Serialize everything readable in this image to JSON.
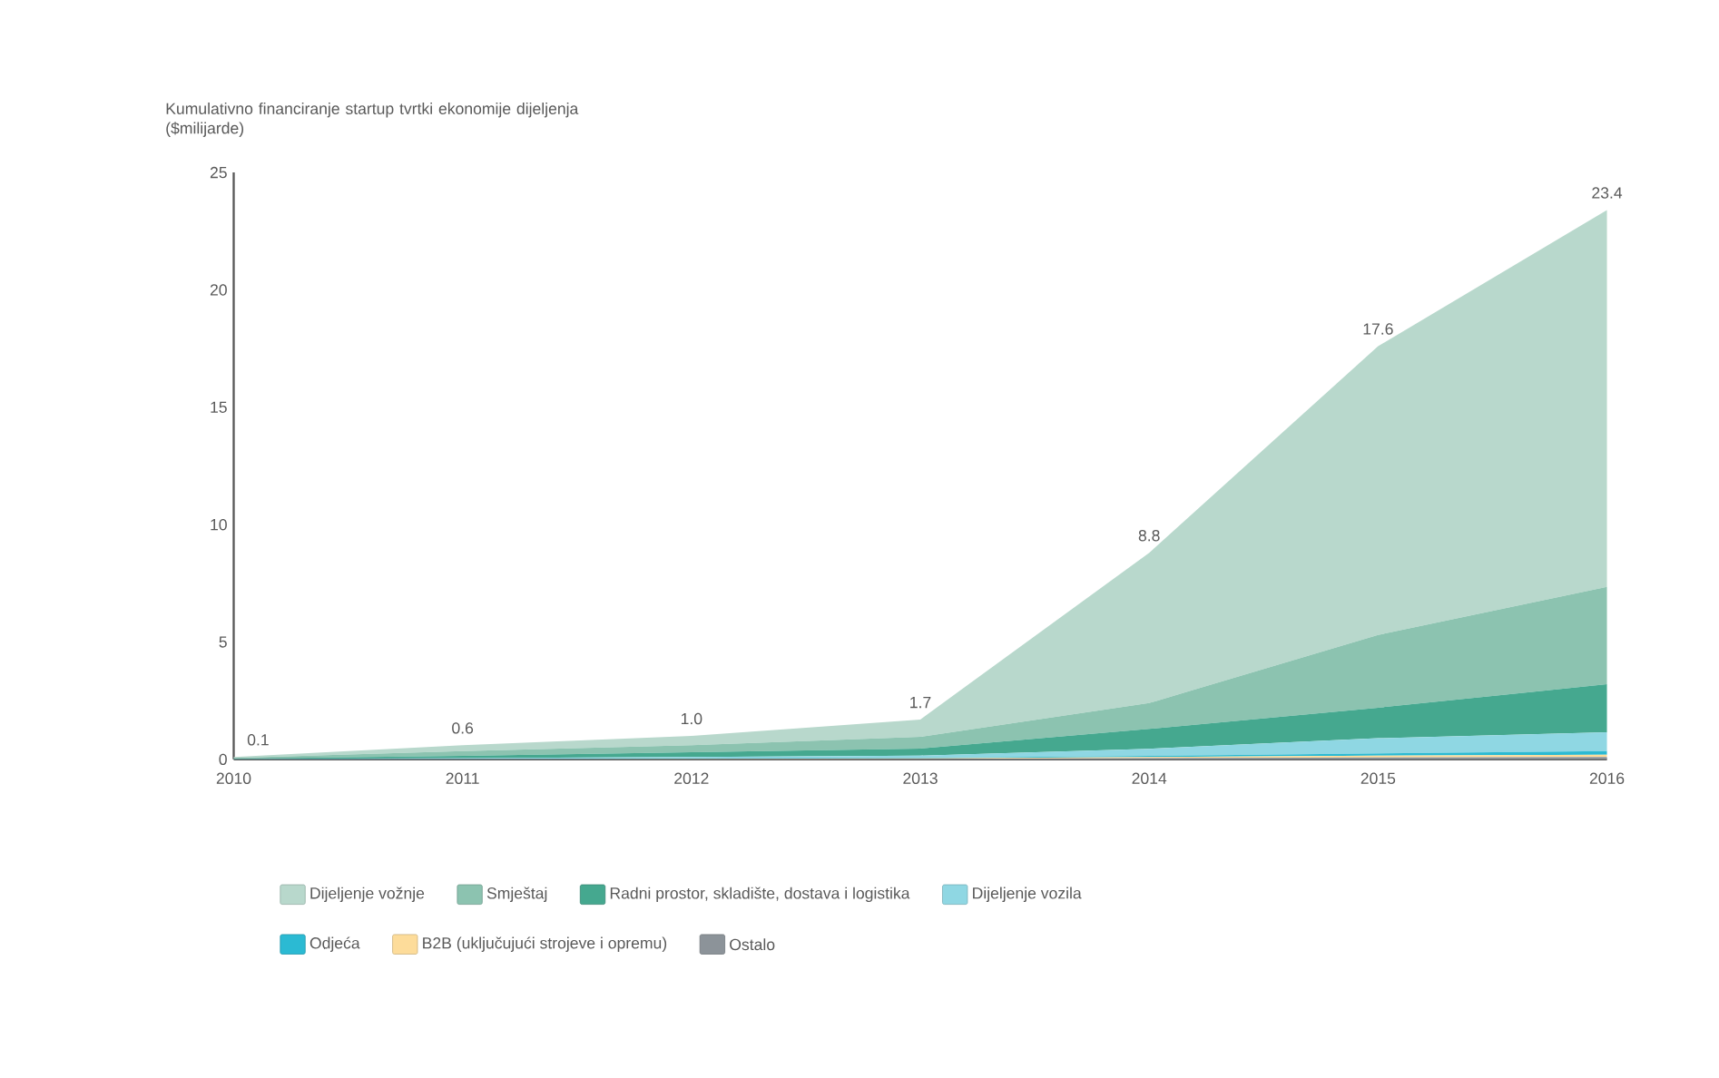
{
  "chart_data": {
    "type": "area",
    "stacked": true,
    "title": "Kumulativno financiranje startup tvrtki ekonomije dijeljenja ($milijarde)",
    "x": [
      2010,
      2011,
      2012,
      2013,
      2014,
      2015,
      2016
    ],
    "xlim": [
      2010,
      2016
    ],
    "xticks": [
      2010,
      2011,
      2012,
      2013,
      2014,
      2015,
      2016
    ],
    "ylim": [
      0,
      25
    ],
    "yticks": [
      0,
      5,
      10,
      15,
      20,
      25
    ],
    "grid": false,
    "legend": "bottom",
    "totals": [
      "0.1",
      "0.6",
      "1.0",
      "1.7",
      "8.8",
      "17.6",
      "23.4"
    ],
    "series": [
      {
        "name": "Ostalo",
        "color": "#8c9399",
        "values": [
          0,
          0.01,
          0.01,
          0.02,
          0.05,
          0.08,
          0.1
        ]
      },
      {
        "name": "B2B (uključujući strojeve i opremu)",
        "color": "#fddc9a",
        "values": [
          0,
          0,
          0.01,
          0.02,
          0.05,
          0.08,
          0.1
        ]
      },
      {
        "name": "Odjeća",
        "color": "#2bbad3",
        "values": [
          0,
          0.01,
          0.02,
          0.02,
          0.05,
          0.09,
          0.15
        ]
      },
      {
        "name": "Dijeljenje vozila",
        "color": "#8fd7e3",
        "values": [
          0.01,
          0.03,
          0.06,
          0.1,
          0.3,
          0.65,
          0.8
        ]
      },
      {
        "name": "Radni prostor, skladište, dostava i logistika",
        "color": "#45a88f",
        "values": [
          0.02,
          0.1,
          0.2,
          0.3,
          0.85,
          1.3,
          2.05
        ]
      },
      {
        "name": "Smještaj",
        "color": "#8cc3b0",
        "values": [
          0.03,
          0.2,
          0.3,
          0.5,
          1.1,
          3.1,
          4.15
        ]
      },
      {
        "name": "Dijeljenje vožnje",
        "color": "#b8d8cc",
        "values": [
          0.04,
          0.25,
          0.4,
          0.74,
          6.4,
          12.3,
          16.05
        ]
      }
    ]
  }
}
